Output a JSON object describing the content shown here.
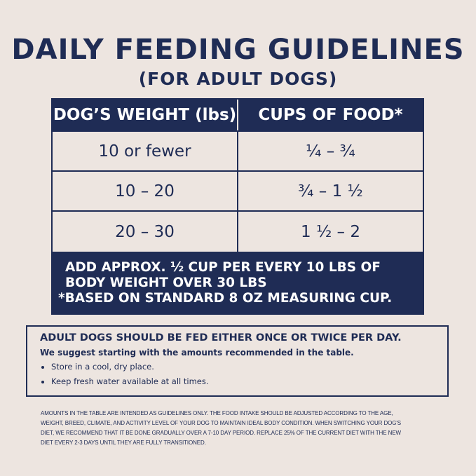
{
  "title": "DAILY FEEDING GUIDELINES",
  "subtitle": "(FOR ADULT DOGS)",
  "table": {
    "headers": [
      "DOG’S WEIGHT (lbs)",
      "CUPS OF FOOD*"
    ],
    "rows": [
      [
        "10 or fewer",
        "¼ – ¾"
      ],
      [
        "10 – 20",
        "¾ – 1 ½"
      ],
      [
        "20 – 30",
        "1 ½ – 2"
      ]
    ],
    "note1": "ADD APPROX. ½ CUP PER EVERY 10 LBS OF BODY WEIGHT OVER 30 LBS",
    "note2": "*BASED ON STANDARD 8 OZ MEASURING CUP."
  },
  "info": {
    "heading": "ADULT DOGS SHOULD BE FED EITHER ONCE OR TWICE PER DAY.",
    "suggest": "We suggest starting with the amounts recommended in the table.",
    "bullets": [
      "Store in a cool, dry place.",
      "Keep fresh water available at all times."
    ]
  },
  "fine_print": "AMOUNTS IN THE TABLE ARE INTENDED AS GUIDELINES ONLY. THE FOOD INTAKE SHOULD BE ADJUSTED ACCORDING TO THE AGE, WEIGHT, BREED, CLIMATE, AND ACTIVITY LEVEL OF YOUR DOG TO MAINTAIN IDEAL BODY CONDITION. WHEN SWITCHING YOUR DOG'S DIET, WE RECOMMEND THAT IT BE DONE GRADUALLY OVER A 7-10 DAY PERIOD. REPLACE 25% OF THE CURRENT DIET WITH THE NEW DIET EVERY 2-3 DAYS UNTIL THEY ARE FULLY TRANSITIONED.",
  "colors": {
    "navy": "#1f2c55",
    "background": "#ede5e0"
  }
}
